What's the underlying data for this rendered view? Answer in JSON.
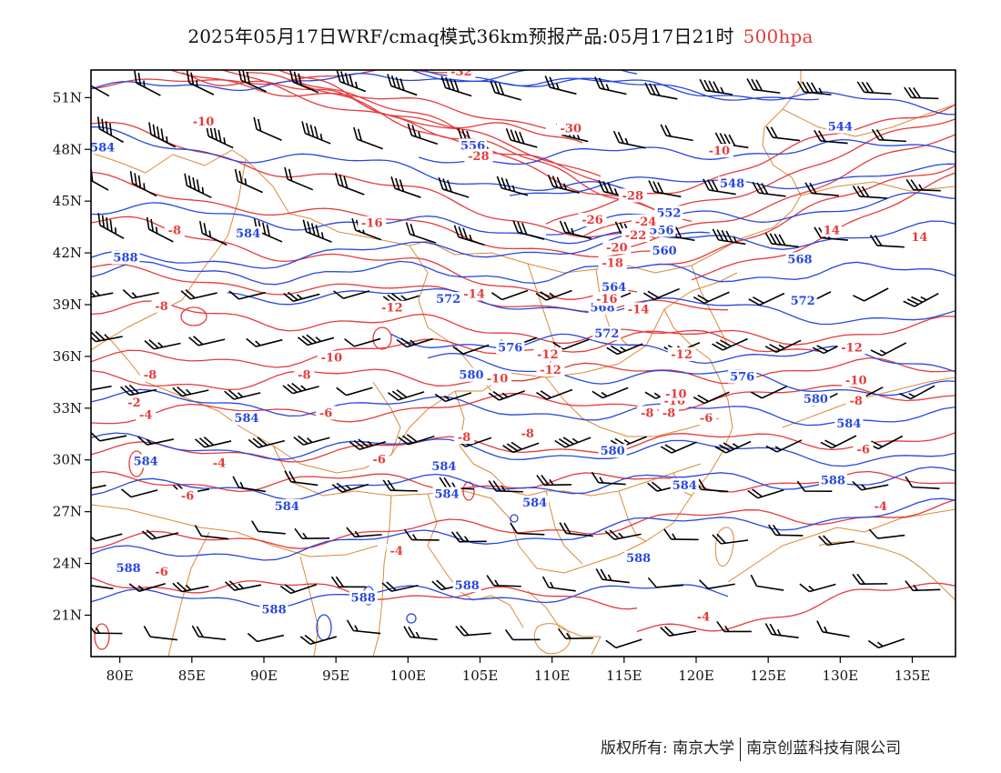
{
  "title": {
    "main": "2025年05月17日WRF/cmaq模式36km预报产品:05月17日21时",
    "level": "500hpa"
  },
  "colors": {
    "height_contour": "#2747e0",
    "temp_contour": "#e53b3b",
    "border": "#d88a3a",
    "wind_barb": "#000000",
    "level_text": "#e53b3b"
  },
  "axes": {
    "lat_labels": [
      "51N",
      "48N",
      "45N",
      "42N",
      "39N",
      "36N",
      "33N",
      "30N",
      "27N",
      "24N",
      "21N"
    ],
    "lon_labels": [
      "80E",
      "85E",
      "90E",
      "95E",
      "100E",
      "105E",
      "110E",
      "115E",
      "120E",
      "125E",
      "130E",
      "135E"
    ],
    "lon_range": [
      78,
      138
    ],
    "lat_range": [
      18.6,
      52.6
    ]
  },
  "height_labels": [
    {
      "text": "584",
      "lon": 78.8,
      "lat": 48.0
    },
    {
      "text": "584",
      "lon": 88.9,
      "lat": 43.0
    },
    {
      "text": "588",
      "lon": 80.4,
      "lat": 41.6
    },
    {
      "text": "556",
      "lon": 104.5,
      "lat": 48.1
    },
    {
      "text": "544",
      "lon": 130.0,
      "lat": 49.2
    },
    {
      "text": "548",
      "lon": 122.5,
      "lat": 45.9
    },
    {
      "text": "552",
      "lon": 118.1,
      "lat": 44.2
    },
    {
      "text": "556",
      "lon": 117.6,
      "lat": 43.2
    },
    {
      "text": "560",
      "lon": 117.8,
      "lat": 42.0
    },
    {
      "text": "564",
      "lon": 114.3,
      "lat": 39.9
    },
    {
      "text": "568",
      "lon": 113.5,
      "lat": 38.7
    },
    {
      "text": "568",
      "lon": 127.2,
      "lat": 41.5
    },
    {
      "text": "572",
      "lon": 102.8,
      "lat": 39.2
    },
    {
      "text": "572",
      "lon": 113.8,
      "lat": 37.2
    },
    {
      "text": "572",
      "lon": 127.4,
      "lat": 39.1
    },
    {
      "text": "576",
      "lon": 107.1,
      "lat": 36.4
    },
    {
      "text": "576",
      "lon": 123.2,
      "lat": 34.7
    },
    {
      "text": "580",
      "lon": 104.4,
      "lat": 34.8
    },
    {
      "text": "580",
      "lon": 114.2,
      "lat": 30.4
    },
    {
      "text": "580",
      "lon": 128.3,
      "lat": 33.4
    },
    {
      "text": "584",
      "lon": 88.8,
      "lat": 32.3
    },
    {
      "text": "584",
      "lon": 81.8,
      "lat": 29.8
    },
    {
      "text": "584",
      "lon": 102.5,
      "lat": 29.5
    },
    {
      "text": "584",
      "lon": 102.7,
      "lat": 27.9
    },
    {
      "text": "584",
      "lon": 91.6,
      "lat": 27.2
    },
    {
      "text": "584",
      "lon": 108.8,
      "lat": 27.4
    },
    {
      "text": "584",
      "lon": 130.6,
      "lat": 32.0
    },
    {
      "text": "584",
      "lon": 119.2,
      "lat": 28.4
    },
    {
      "text": "588",
      "lon": 80.6,
      "lat": 23.6
    },
    {
      "text": "588",
      "lon": 90.7,
      "lat": 21.2
    },
    {
      "text": "588",
      "lon": 96.9,
      "lat": 21.9
    },
    {
      "text": "588",
      "lon": 104.1,
      "lat": 22.6
    },
    {
      "text": "588",
      "lon": 116.0,
      "lat": 24.2
    },
    {
      "text": "588",
      "lon": 129.5,
      "lat": 28.7
    }
  ],
  "temp_labels": [
    {
      "text": "-10",
      "lon": 85.8,
      "lat": 49.5
    },
    {
      "text": "-32",
      "lon": 103.7,
      "lat": 52.4
    },
    {
      "text": "-30",
      "lon": 111.3,
      "lat": 49.1
    },
    {
      "text": "-28",
      "lon": 104.9,
      "lat": 47.5
    },
    {
      "text": "-10",
      "lon": 121.6,
      "lat": 47.8
    },
    {
      "text": "-28",
      "lon": 115.6,
      "lat": 45.2
    },
    {
      "text": "-26",
      "lon": 112.8,
      "lat": 43.8
    },
    {
      "text": "-24",
      "lon": 116.5,
      "lat": 43.7
    },
    {
      "text": "-22",
      "lon": 115.8,
      "lat": 42.9
    },
    {
      "text": "-20",
      "lon": 114.5,
      "lat": 42.2
    },
    {
      "text": "-18",
      "lon": 114.2,
      "lat": 41.3
    },
    {
      "text": "-16",
      "lon": 97.5,
      "lat": 43.6
    },
    {
      "text": "-8",
      "lon": 83.8,
      "lat": 43.2
    },
    {
      "text": "-8",
      "lon": 82.9,
      "lat": 38.8
    },
    {
      "text": "-14",
      "lon": 104.6,
      "lat": 39.5
    },
    {
      "text": "-16",
      "lon": 113.8,
      "lat": 39.2
    },
    {
      "text": "-14",
      "lon": 116.0,
      "lat": 38.6
    },
    {
      "text": "-12",
      "lon": 98.9,
      "lat": 38.7
    },
    {
      "text": "-12",
      "lon": 109.9,
      "lat": 35.1
    },
    {
      "text": "-12",
      "lon": 119.0,
      "lat": 36.0
    },
    {
      "text": "-12",
      "lon": 130.8,
      "lat": 36.4
    },
    {
      "text": "-10",
      "lon": 94.7,
      "lat": 35.8
    },
    {
      "text": "-10",
      "lon": 106.2,
      "lat": 34.6
    },
    {
      "text": "-10",
      "lon": 131.1,
      "lat": 34.5
    },
    {
      "text": "-10",
      "lon": 118.5,
      "lat": 33.3
    },
    {
      "text": "-8",
      "lon": 92.8,
      "lat": 34.8
    },
    {
      "text": "-8",
      "lon": 82.1,
      "lat": 34.8
    },
    {
      "text": "-8",
      "lon": 118.1,
      "lat": 32.6
    },
    {
      "text": "-8",
      "lon": 131.1,
      "lat": 33.3
    },
    {
      "text": "-6",
      "lon": 94.3,
      "lat": 32.6
    },
    {
      "text": "-6",
      "lon": 120.7,
      "lat": 32.3
    },
    {
      "text": "-6",
      "lon": 98.0,
      "lat": 29.9
    },
    {
      "text": "-6",
      "lon": 131.6,
      "lat": 30.5
    },
    {
      "text": "-8",
      "lon": 103.9,
      "lat": 31.2
    },
    {
      "text": "-8",
      "lon": 108.3,
      "lat": 31.4
    },
    {
      "text": "-4",
      "lon": 81.8,
      "lat": 32.5
    },
    {
      "text": "-4",
      "lon": 86.9,
      "lat": 29.7
    },
    {
      "text": "-2",
      "lon": 81.0,
      "lat": 33.2
    },
    {
      "text": "-6",
      "lon": 84.7,
      "lat": 27.8
    },
    {
      "text": "-4",
      "lon": 99.2,
      "lat": 24.6
    },
    {
      "text": "-6",
      "lon": 82.9,
      "lat": 23.4
    },
    {
      "text": "-4",
      "lon": 132.8,
      "lat": 27.2
    },
    {
      "text": "-4",
      "lon": 120.5,
      "lat": 20.8
    },
    {
      "text": "14",
      "lon": 129.4,
      "lat": 43.2
    },
    {
      "text": "14",
      "lon": 135.5,
      "lat": 42.8
    },
    {
      "text": "-12",
      "lon": 109.7,
      "lat": 36.0
    },
    {
      "text": "-10",
      "lon": 118.6,
      "lat": 33.7
    },
    {
      "text": "-8",
      "lon": 116.6,
      "lat": 32.6
    }
  ],
  "footer": {
    "copyright": "版权所有: 南京大学",
    "company": "南京创蓝科技有限公司"
  }
}
